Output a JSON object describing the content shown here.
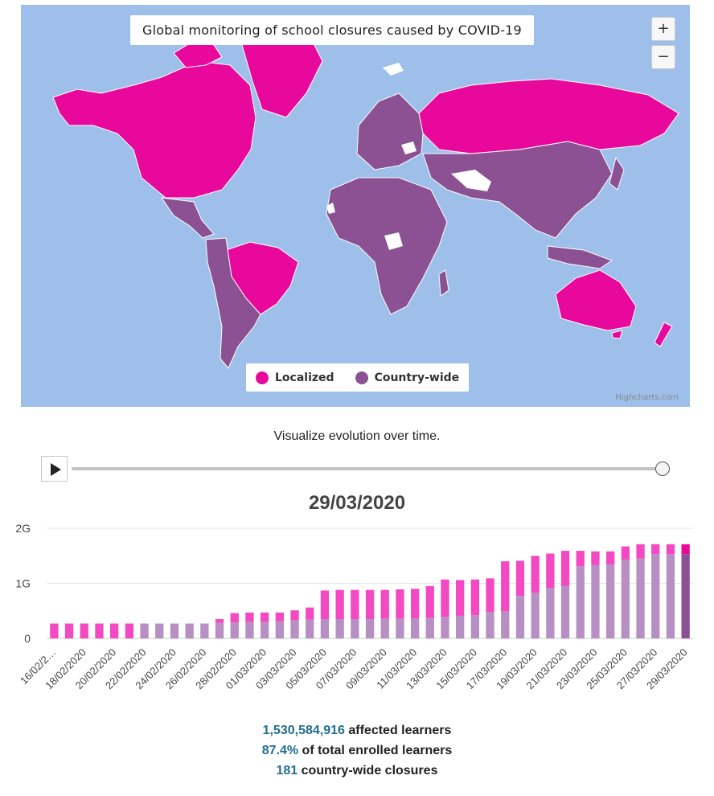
{
  "map": {
    "title": "Global monitoring of school closures caused by COVID-19",
    "zoom_in_label": "+",
    "zoom_out_label": "−",
    "legend": [
      {
        "label": "Localized",
        "color": "#e8099c"
      },
      {
        "label": "Country-wide",
        "color": "#8b5193"
      }
    ],
    "no_data_color": "#ffffff",
    "ocean_color": "#9dbfe9",
    "credits": "Highcharts.com"
  },
  "caption": "Visualize evolution over time.",
  "timeline": {
    "progress": 1.0
  },
  "current_date": "29/03/2020",
  "chart_data": {
    "type": "bar",
    "stacked": true,
    "categories": [
      "16/02/2020",
      "17/02/2020",
      "18/02/2020",
      "19/02/2020",
      "20/02/2020",
      "21/02/2020",
      "22/02/2020",
      "23/02/2020",
      "24/02/2020",
      "25/02/2020",
      "26/02/2020",
      "27/02/2020",
      "28/02/2020",
      "29/02/2020",
      "01/03/2020",
      "02/03/2020",
      "03/03/2020",
      "04/03/2020",
      "05/03/2020",
      "06/03/2020",
      "07/03/2020",
      "08/03/2020",
      "09/03/2020",
      "10/03/2020",
      "11/03/2020",
      "12/03/2020",
      "13/03/2020",
      "14/03/2020",
      "15/03/2020",
      "16/03/2020",
      "17/03/2020",
      "18/03/2020",
      "19/03/2020",
      "20/03/2020",
      "21/03/2020",
      "22/03/2020",
      "23/03/2020",
      "24/03/2020",
      "25/03/2020",
      "26/03/2020",
      "27/03/2020",
      "28/03/2020",
      "29/03/2020"
    ],
    "tick_labels": [
      "16/02/2…",
      "18/02/2020",
      "20/02/2020",
      "22/02/2020",
      "24/02/2020",
      "26/02/2020",
      "28/02/2020",
      "01/03/2020",
      "03/03/2020",
      "05/03/2020",
      "07/03/2020",
      "09/03/2020",
      "11/03/2020",
      "13/03/2020",
      "15/03/2020",
      "17/03/2020",
      "19/03/2020",
      "21/03/2020",
      "23/03/2020",
      "25/03/2020",
      "27/03/2020",
      "29/03/2020"
    ],
    "series": [
      {
        "name": "Country-wide",
        "color": "#b88fc2",
        "highlight_color": "#8b5193",
        "values": [
          0,
          0,
          0,
          0,
          0,
          0,
          0.27,
          0.27,
          0.27,
          0.27,
          0.27,
          0.28,
          0.29,
          0.3,
          0.3,
          0.31,
          0.33,
          0.34,
          0.35,
          0.35,
          0.35,
          0.35,
          0.36,
          0.36,
          0.36,
          0.37,
          0.39,
          0.41,
          0.42,
          0.48,
          0.49,
          0.77,
          0.83,
          0.92,
          0.95,
          1.31,
          1.33,
          1.34,
          1.43,
          1.45,
          1.53,
          1.53,
          1.53
        ]
      },
      {
        "name": "Localized",
        "color": "#f349c2",
        "highlight_color": "#e8099c",
        "values": [
          0.27,
          0.27,
          0.27,
          0.27,
          0.27,
          0.27,
          0,
          0,
          0,
          0,
          0,
          0.07,
          0.17,
          0.17,
          0.17,
          0.16,
          0.18,
          0.22,
          0.52,
          0.53,
          0.53,
          0.53,
          0.52,
          0.53,
          0.54,
          0.58,
          0.68,
          0.65,
          0.65,
          0.61,
          0.91,
          0.64,
          0.67,
          0.62,
          0.64,
          0.28,
          0.25,
          0.24,
          0.24,
          0.26,
          0.18,
          0.18,
          0.18
        ]
      }
    ],
    "yticks": [
      {
        "value": 0,
        "label": "0"
      },
      {
        "value": 1,
        "label": "1G"
      },
      {
        "value": 2,
        "label": "2G"
      }
    ],
    "ylim": [
      0,
      2
    ],
    "y_unit": "billions of learners",
    "grid": true
  },
  "stats": {
    "affected_value": "1,530,584,916",
    "affected_label": "affected learners",
    "percent_value": "87.4%",
    "percent_label": "of total enrolled learners",
    "closures_value": "181",
    "closures_label": "country-wide closures"
  }
}
